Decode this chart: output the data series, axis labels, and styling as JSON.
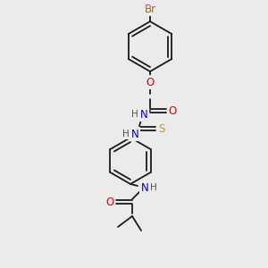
{
  "bg_color": "#ebebeb",
  "bond_color": "#1a1a1a",
  "atom_colors": {
    "O": "#e00000",
    "N": "#0000e0",
    "S": "#b8a000",
    "Br": "#c06000",
    "C": "#1a1a1a",
    "H": "#505050"
  },
  "figsize": [
    3.0,
    3.0
  ],
  "dpi": 100
}
